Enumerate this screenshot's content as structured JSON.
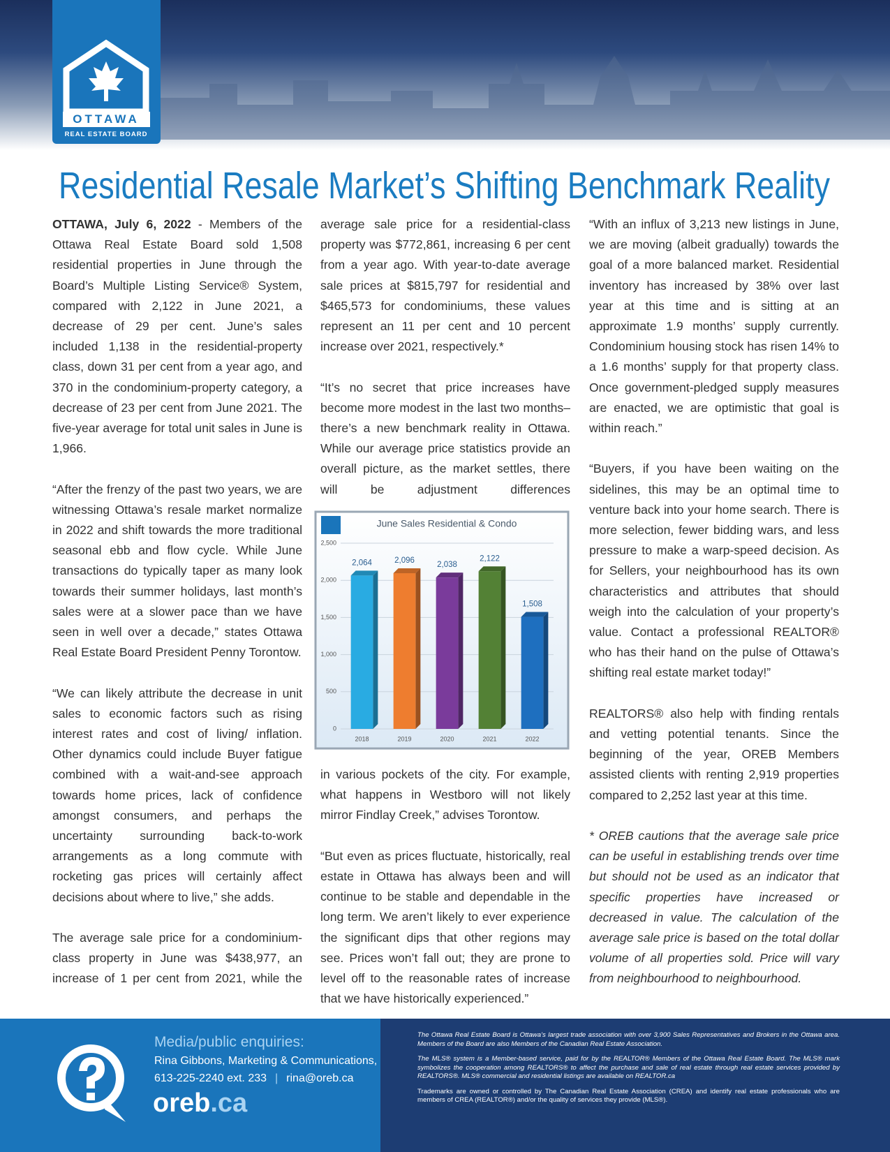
{
  "logo": {
    "name": "OTTAWA",
    "subtitle": "REAL ESTATE BOARD"
  },
  "title": "Residential Resale Market’s Shifting Benchmark Reality",
  "dateline": "OTTAWA, July 6, 2022",
  "columns": [
    [
      "- Members of the Ottawa Real Estate Board sold 1,508 residential properties in June through the Board’s Multiple Listing Service® System, compared with 2,122 in June 2021, a decrease of 29 per cent. June’s sales included 1,138 in the residential-property class, down 31 per cent from a year ago, and 370 in the condominium-property category, a decrease of 23 per cent from June 2021. The five-year average for total unit sales in June is 1,966.",
      "“After the frenzy of the past two years, we are witnessing Ottawa’s resale market normalize in 2022 and shift towards the more traditional seasonal ebb and flow cycle. While June transactions do typically taper as many look towards their summer holidays, last month’s sales were at a slower pace than we have seen in well over a decade,” states Ottawa Real Estate Board President Penny Torontow.",
      "“We can likely attribute the decrease in unit sales to economic factors such as rising interest rates and cost of living/ inflation. Other dynamics could include Buyer fatigue combined with a wait-and-see approach towards home prices, lack of confidence amongst consumers, and perhaps the uncertainty surrounding back-to-work arrangements as a long commute with rocketing gas prices will certainly affect decisions about where to live,” she adds.",
      "The average sale price for a condominium-class property in June was $438,977, an increase of 1 per cent from 2021, while the"
    ],
    [
      "average sale price for a residential-class property was $772,861, increasing 6 per cent from a year ago. With year-to-date average sale prices at $815,797 for residential and $465,573 for condominiums, these values represent an 11 per cent and 10 percent increase over 2021, respectively.*",
      "“It’s no secret that price increases have become more modest in the last two months–there’s a new benchmark reality in Ottawa. While our average price statistics provide an overall picture, as the market settles, there will be adjustment differences",
      "in various pockets of the city. For example, what happens in Westboro will not likely mirror Findlay Creek,” advises Torontow.",
      "“But even as prices fluctuate, historically, real estate in Ottawa has always been and will continue to be stable and dependable in the long term. We aren’t likely to ever experience the significant dips that other regions may see. Prices won’t fall out; they are prone to level off to the reasonable rates of increase that we have historically experienced.”"
    ],
    [
      "“With an influx of 3,213 new listings in June, we are moving (albeit gradually) towards the goal of a more balanced market. Residential inventory has increased by 38% over last year at this time and is sitting at an approximate 1.9 months’ supply currently. Condominium housing stock has risen 14% to a 1.6 months’ supply for that property class. Once government-pledged supply measures are enacted, we are optimistic that goal is within reach.”",
      "“Buyers, if you have been waiting on the sidelines, this may be an optimal time to venture back into your home search. There is more selection, fewer bidding wars, and less pressure to make a warp-speed decision. As for Sellers, your neighbourhood has its own characteristics and attributes that should weigh into the calculation of your property’s value. Contact a professional REALTOR® who has their hand on the pulse of Ottawa’s shifting real estate market today!”",
      "REALTORS® also help with finding rentals and vetting potential tenants. Since the beginning of the year, OREB Members assisted clients with renting 2,919 properties compared to 2,252 last year at this time.",
      "* OREB cautions that the average sale price can be useful in establishing trends over time but should not be used as an indicator that specific properties have increased or decreased in value. The calculation of the average sale price is based on the total dollar volume of all properties sold. Price will vary from neighbourhood to neighbourhood."
    ]
  ],
  "chart_data": {
    "type": "bar",
    "title": "June Sales Residential & Condo",
    "categories": [
      "2018",
      "2019",
      "2020",
      "2021",
      "2022"
    ],
    "values": [
      2064,
      2096,
      2038,
      2122,
      1508
    ],
    "value_labels": [
      "2,064",
      "2,096",
      "2,038",
      "2,122",
      "1,508"
    ],
    "colors": [
      "#29abe2",
      "#ee7d2f",
      "#7a3b9b",
      "#538135",
      "#1e6fbf"
    ],
    "ylim": [
      0,
      2500
    ],
    "yticks": [
      0,
      500,
      {
        "value": 1000,
        "label": "1,000"
      },
      {
        "value": 1500,
        "label": "1,500"
      },
      {
        "value": 2000,
        "label": "2,000"
      },
      {
        "value": 2500,
        "label": "2,500"
      }
    ],
    "grid": true
  },
  "footer": {
    "heading": "Media/public enquiries:",
    "contact_name": "Rina Gibbons, Marketing & Communications,",
    "phone": "613-225-2240 ext. 233",
    "separator": "|",
    "email": "rina@oreb.ca",
    "site_name": "oreb",
    "site_tld": ".ca",
    "notes": [
      "The Ottawa Real Estate Board is Ottawa’s largest trade association with over 3,900 Sales Representatives and Brokers in the Ottawa area. Members of the Board are also Members of the Canadian Real Estate Association.",
      "The MLS® system is a Member-based service, paid for by the REALTOR® Members of the Ottawa Real Estate Board. The MLS® mark symbolizes the cooperation among REALTORS® to affect the purchase and sale of real estate through real estate services provided by REALTORS®. MLS® commercial and residential listings are available on REALTOR.ca",
      "Trademarks are owned or controlled by The Canadian Real Estate Association (CREA) and identify real estate professionals who are members of CREA (REALTOR®) and/or the quality of services they provide (MLS®)."
    ]
  }
}
